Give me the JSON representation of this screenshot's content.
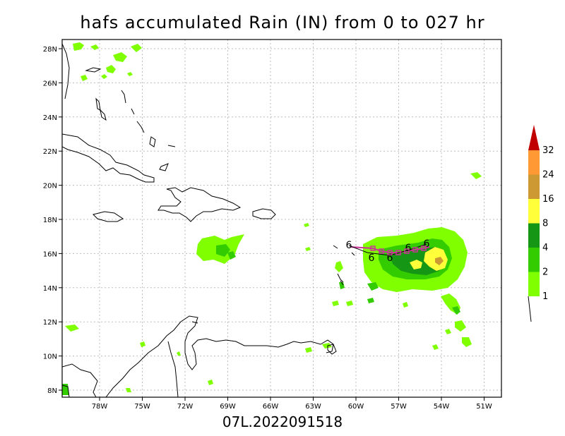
{
  "title": "hafs accumulated Rain (IN) from 0 to 027 hr",
  "footer": "07L.2022091518",
  "map": {
    "lon_ticks": [
      "78W",
      "75W",
      "72W",
      "69W",
      "66W",
      "63W",
      "60W",
      "57W",
      "54W",
      "51W"
    ],
    "lat_ticks": [
      "28N",
      "26N",
      "24N",
      "22N",
      "20N",
      "18N",
      "16N",
      "14N",
      "12N",
      "10N",
      "8N"
    ]
  },
  "colorbar": {
    "levels": [
      "1",
      "2",
      "4",
      "8",
      "16",
      "24",
      "32"
    ],
    "colors": [
      "#80ff00",
      "#33cc00",
      "#159615",
      "#ffff3a",
      "#cc9933",
      "#ff9933",
      "#c00000"
    ]
  },
  "track": {
    "storm_symbol": "6",
    "colors": {
      "forecast": "#000000",
      "hafs": "#cc3399"
    }
  }
}
